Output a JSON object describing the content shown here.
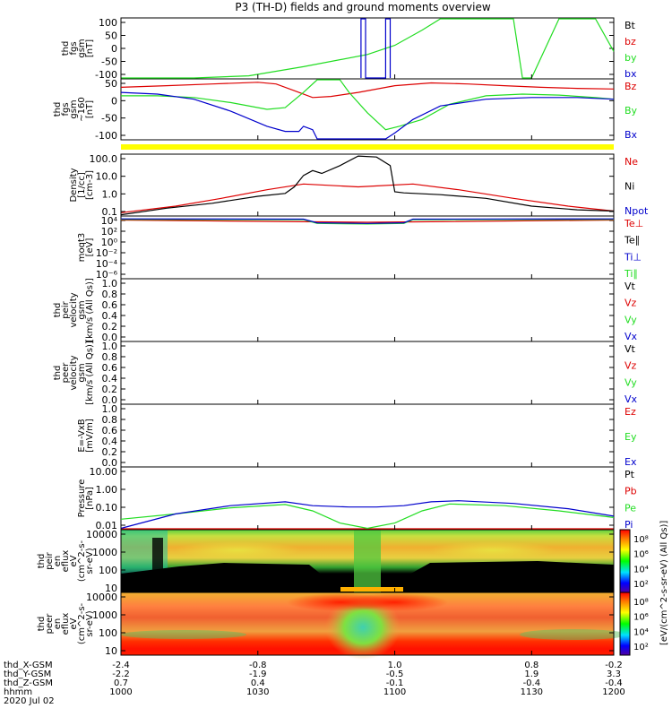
{
  "title": "P3 (TH-D) fields and ground moments overview",
  "colors": {
    "red": "#dd0000",
    "green": "#22dd22",
    "blue": "#0000cc",
    "black": "#000000",
    "yellow": "#ffff00"
  },
  "chart_data": [
    {
      "type": "line",
      "panel": "fgs",
      "ylabel": [
        "thd",
        "fgs",
        "gsm",
        "[nT]"
      ],
      "yticks": [
        "100",
        "50",
        "0",
        "-50",
        "-100"
      ],
      "ylim": [
        -100,
        100
      ],
      "legend": [
        "Bt",
        "bz",
        "by",
        "bx"
      ],
      "series": [
        {
          "name": "by",
          "x": [
            1000,
            1008,
            1014,
            1020,
            1027,
            1030,
            1033,
            1035,
            1036,
            1037,
            1041,
            1043,
            1044,
            1045,
            1048,
            1050,
            1052,
            1054
          ],
          "y": [
            -100,
            -98,
            -90,
            -60,
            -20,
            10,
            60,
            100,
            120,
            120,
            120,
            100,
            -100,
            -100,
            120,
            120,
            100,
            -10
          ]
        },
        {
          "name": "bx",
          "x": [
            1026.3,
            1026.3,
            1026.8,
            1026.8,
            1029.0,
            1029.0,
            1029.5,
            1029.5
          ],
          "y": [
            -100,
            100,
            100,
            -100,
            -100,
            100,
            100,
            -100
          ]
        }
      ]
    },
    {
      "type": "line",
      "panel": "fgs_dec",
      "ylabel": [
        "thd",
        "fgs",
        "gsm",
        "~160",
        "[nT]"
      ],
      "yticks": [
        "50",
        "0",
        "-50",
        "-100"
      ],
      "ylim": [
        -120,
        60
      ],
      "legend": [
        "Bz",
        "By",
        "Bx"
      ],
      "series": [
        {
          "name": "Bz",
          "x": [
            1000,
            1005,
            1010,
            1015,
            1017,
            1019,
            1021,
            1023,
            1026,
            1030,
            1034,
            1038,
            1042,
            1046,
            1050,
            1054
          ],
          "y": [
            35,
            40,
            45,
            50,
            45,
            25,
            5,
            8,
            20,
            40,
            48,
            45,
            40,
            35,
            32,
            30
          ]
        },
        {
          "name": "By",
          "x": [
            1000,
            1004,
            1008,
            1012,
            1016,
            1018,
            1020,
            1021.5,
            1023,
            1024,
            1025,
            1027,
            1029,
            1030.5,
            1033,
            1036,
            1040,
            1044,
            1048,
            1052,
            1054
          ],
          "y": [
            10,
            10,
            5,
            -10,
            -30,
            -25,
            20,
            70,
            100,
            75,
            20,
            -40,
            -90,
            -80,
            -60,
            -15,
            10,
            15,
            12,
            5,
            0
          ]
        },
        {
          "name": "Bx",
          "x": [
            1000,
            1004,
            1008,
            1012,
            1016,
            1018,
            1019.5,
            1020,
            1021,
            1021.5,
            1029,
            1030,
            1032,
            1035,
            1040,
            1045,
            1050,
            1054
          ],
          "y": [
            20,
            15,
            0,
            -35,
            -80,
            -95,
            -95,
            -80,
            -90,
            -125,
            -125,
            -100,
            -60,
            -20,
            0,
            5,
            5,
            0
          ]
        }
      ]
    },
    {
      "type": "line",
      "panel": "density",
      "ylabel": [
        "Density",
        "[1/cc]",
        "[cm-3]"
      ],
      "yticks": [
        "100.0",
        "10.0",
        "1.0",
        "0.1"
      ],
      "ylim": [
        0.05,
        300
      ],
      "scale": "log",
      "legend": [
        "Ne",
        "Ni",
        "Npot"
      ],
      "series": [
        {
          "name": "Ne",
          "x": [
            1000,
            1006,
            1011,
            1016,
            1020,
            1026,
            1032,
            1037,
            1043,
            1049,
            1054
          ],
          "y": [
            0.08,
            0.2,
            0.6,
            2.0,
            4.5,
            3.0,
            4.5,
            2.0,
            0.6,
            0.2,
            0.1
          ]
        },
        {
          "name": "Ni",
          "x": [
            1000,
            1005,
            1010,
            1015,
            1018,
            1019,
            1020,
            1021,
            1022,
            1024,
            1026,
            1028,
            1029.5,
            1030,
            1031,
            1035,
            1040,
            1045,
            1050,
            1054
          ],
          "y": [
            0.06,
            0.15,
            0.3,
            0.8,
            1.2,
            3.0,
            15,
            30,
            20,
            60,
            230,
            200,
            60,
            1.5,
            1.3,
            1.0,
            0.6,
            0.2,
            0.12,
            0.1
          ]
        }
      ]
    },
    {
      "type": "line",
      "panel": "moqt3",
      "ylabel": [
        "moqt3",
        "[eV]"
      ],
      "yticks": [
        "10⁴",
        "10²",
        "10⁰",
        "10⁻²",
        "10⁻⁴",
        "10⁻⁶"
      ],
      "ylim": [
        -7,
        4
      ],
      "scale": "log10-exponent",
      "legend": [
        "Te⊥",
        "Te∥",
        "Ti⊥",
        "Ti∥"
      ],
      "series": [
        {
          "name": "Te⊥",
          "x": [
            1000,
            1020,
            1027,
            1034,
            1054
          ],
          "y": [
            3.3,
            3.0,
            2.9,
            3.0,
            3.3
          ]
        },
        {
          "name": "Ti∥",
          "x": [
            1000,
            1020,
            1021.5,
            1027,
            1031,
            1032,
            1054
          ],
          "y": [
            3.4,
            3.35,
            2.7,
            2.6,
            2.7,
            3.35,
            3.4
          ]
        },
        {
          "name": "Ti⊥",
          "x": [
            1000,
            1020,
            1021.5,
            1027,
            1031,
            1032,
            1054
          ],
          "y": [
            3.5,
            3.45,
            2.8,
            2.7,
            2.8,
            3.45,
            3.5
          ]
        }
      ]
    },
    {
      "type": "line",
      "panel": "peir",
      "ylabel": [
        "thd",
        "peir",
        "velocity",
        "gsm",
        "[km/s (All Qs)]"
      ],
      "yticks": [
        "1.0",
        "0.8",
        "0.6",
        "0.4",
        "0.2",
        "0.0"
      ],
      "ylim": [
        0,
        1
      ],
      "legend": [
        "Vt",
        "Vz",
        "Vy",
        "Vx"
      ],
      "series": []
    },
    {
      "type": "line",
      "panel": "peer",
      "ylabel": [
        "thd",
        "peer",
        "velocity",
        "gsm",
        "[km/s (All Qs)]"
      ],
      "yticks": [
        "1.0",
        "0.8",
        "0.6",
        "0.4",
        "0.2",
        "0.0"
      ],
      "ylim": [
        0,
        1
      ],
      "legend": [
        "Vt",
        "Vz",
        "Vy",
        "Vx"
      ],
      "series": []
    },
    {
      "type": "line",
      "panel": "efield",
      "ylabel": [
        "E=-VxB",
        "[mV/m]"
      ],
      "yticks": [
        "1.0",
        "0.8",
        "0.6",
        "0.4",
        "0.2",
        "0.0"
      ],
      "ylim": [
        0,
        1
      ],
      "legend": [
        "Ez",
        "Ey",
        "Ex"
      ],
      "series": []
    },
    {
      "type": "line",
      "panel": "pressure",
      "ylabel": [
        "Pressure",
        "[nPa]"
      ],
      "yticks": [
        "10.00",
        "1.00",
        "0.10",
        "0.01"
      ],
      "ylim": [
        0.005,
        20
      ],
      "scale": "log",
      "legend": [
        "Pt",
        "Pb",
        "Pe",
        "Pi"
      ],
      "series": [
        {
          "name": "Pb",
          "x": [
            1000,
            1054
          ],
          "y": [
            0.0055,
            0.0055
          ]
        },
        {
          "name": "Pe",
          "x": [
            1000,
            1006,
            1012,
            1018,
            1021,
            1024,
            1027,
            1030,
            1033,
            1036,
            1042,
            1048,
            1054
          ],
          "y": [
            0.02,
            0.04,
            0.09,
            0.14,
            0.06,
            0.012,
            0.006,
            0.012,
            0.06,
            0.15,
            0.12,
            0.06,
            0.025
          ]
        },
        {
          "name": "Pi",
          "x": [
            1000,
            1006,
            1012,
            1018,
            1021,
            1025,
            1028,
            1031,
            1034,
            1037,
            1043,
            1049,
            1054
          ],
          "y": [
            0.006,
            0.04,
            0.12,
            0.2,
            0.12,
            0.1,
            0.1,
            0.12,
            0.2,
            0.23,
            0.16,
            0.08,
            0.03
          ]
        }
      ]
    },
    {
      "type": "heatmap",
      "panel": "peir_en",
      "ylabel": [
        "thd",
        "peir",
        "en",
        "eflux",
        "eV",
        "(cm^2-s-",
        "sr-eV)"
      ],
      "yticks": [
        "10000",
        "1000",
        "100",
        "10"
      ],
      "ylim": [
        5,
        25000
      ],
      "scale": "log",
      "colorbar_label": "[eV/(cm^2-s-sr-eV) (All Qs)]",
      "colorbar_ticks": [
        "10⁸",
        "10⁶",
        "10⁴",
        "10²"
      ]
    },
    {
      "type": "heatmap",
      "panel": "peer_en",
      "ylabel": [
        "thd",
        "peer",
        "en",
        "eflux",
        "eV",
        "(cm^2-s-",
        "sr-eV)"
      ],
      "yticks": [
        "10000",
        "1000",
        "100",
        "10"
      ],
      "ylim": [
        5,
        25000
      ],
      "scale": "log",
      "colorbar_label": "[eV/(cm^2-s-sr-eV) (All Qs)]",
      "colorbar_ticks": [
        "10⁸",
        "10⁶",
        "10⁴",
        "10²"
      ]
    }
  ],
  "x_axis": {
    "xlim": [
      1000,
      1054
    ],
    "tick_x": [
      1000,
      1015,
      1030,
      1045,
      1054
    ],
    "row_labels": [
      "thd_X-GSM",
      "thd_Y-GSM",
      "thd_Z-GSM",
      "hhmm",
      "2020 Jul 02"
    ],
    "rows": [
      [
        "-2.4",
        "-0.8",
        "1.0",
        "0.8",
        "-0.2"
      ],
      [
        "-2.2",
        "-1.9",
        "-0.5",
        "1.9",
        "3.3"
      ],
      [
        "0.7",
        "0.4",
        "-0.1",
        "-0.4",
        "-0.4"
      ],
      [
        "1000",
        "1030",
        "1100",
        "1130",
        "1200"
      ]
    ]
  }
}
